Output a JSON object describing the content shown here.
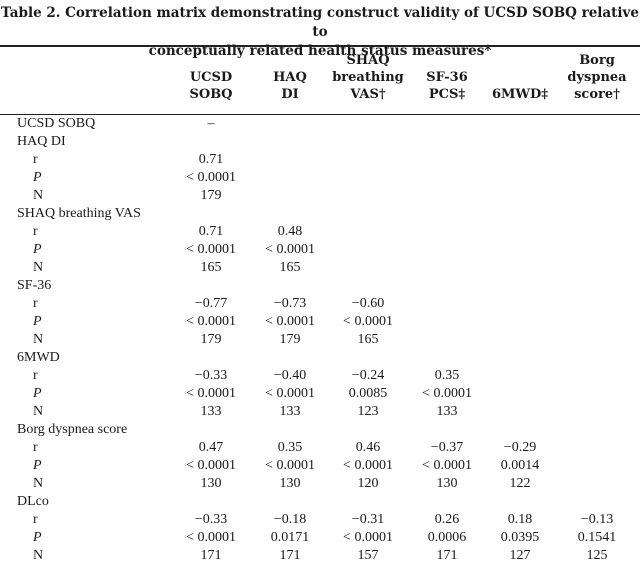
{
  "caption": {
    "line1": "Table 2. Correlation matrix demonstrating construct validity of UCSD SOBQ relative to",
    "line2": "conceptually related health status measures*"
  },
  "columns": [
    {
      "line1": "UCSD",
      "line2": "SOBQ",
      "line3": ""
    },
    {
      "line1": "HAQ",
      "line2": "DI",
      "line3": ""
    },
    {
      "line1": "SHAQ",
      "line2": "breathing",
      "line3": "VAS†"
    },
    {
      "line1": "SF-36",
      "line2": "PCS‡",
      "line3": ""
    },
    {
      "line1": "6MWD‡",
      "line2": "",
      "line3": ""
    },
    {
      "line1": "Borg",
      "line2": "dyspnea",
      "line3": "score†"
    }
  ],
  "stat_labels": {
    "r": "r",
    "p": "P",
    "n": "N"
  },
  "rows": [
    {
      "label": "UCSD SOBQ",
      "diag": "–"
    },
    {
      "label": "HAQ DI",
      "r": [
        "0.71"
      ],
      "p": [
        "< 0.0001"
      ],
      "n": [
        "179"
      ]
    },
    {
      "label": "SHAQ breathing VAS",
      "r": [
        "0.71",
        "0.48"
      ],
      "p": [
        "< 0.0001",
        "< 0.0001"
      ],
      "n": [
        "165",
        "165"
      ]
    },
    {
      "label": "SF-36",
      "r": [
        "−0.77",
        "−0.73",
        "−0.60"
      ],
      "p": [
        "< 0.0001",
        "< 0.0001",
        "< 0.0001"
      ],
      "n": [
        "179",
        "179",
        "165"
      ]
    },
    {
      "label": "6MWD",
      "r": [
        "−0.33",
        "−0.40",
        "−0.24",
        "0.35"
      ],
      "p": [
        "< 0.0001",
        "< 0.0001",
        "0.0085",
        "< 0.0001"
      ],
      "n": [
        "133",
        "133",
        "123",
        "133"
      ]
    },
    {
      "label": "Borg dyspnea score",
      "r": [
        "0.47",
        "0.35",
        "0.46",
        "−0.37",
        "−0.29"
      ],
      "p": [
        "< 0.0001",
        "< 0.0001",
        "< 0.0001",
        "< 0.0001",
        "0.0014"
      ],
      "n": [
        "130",
        "130",
        "120",
        "130",
        "122"
      ]
    },
    {
      "label": "DLco",
      "r": [
        "−0.33",
        "−0.18",
        "−0.31",
        "0.26",
        "0.18",
        "−0.13"
      ],
      "p": [
        "< 0.0001",
        "0.0171",
        "< 0.0001",
        "0.0006",
        "0.0395",
        "0.1541"
      ],
      "n": [
        "171",
        "171",
        "157",
        "171",
        "127",
        "125"
      ]
    }
  ]
}
